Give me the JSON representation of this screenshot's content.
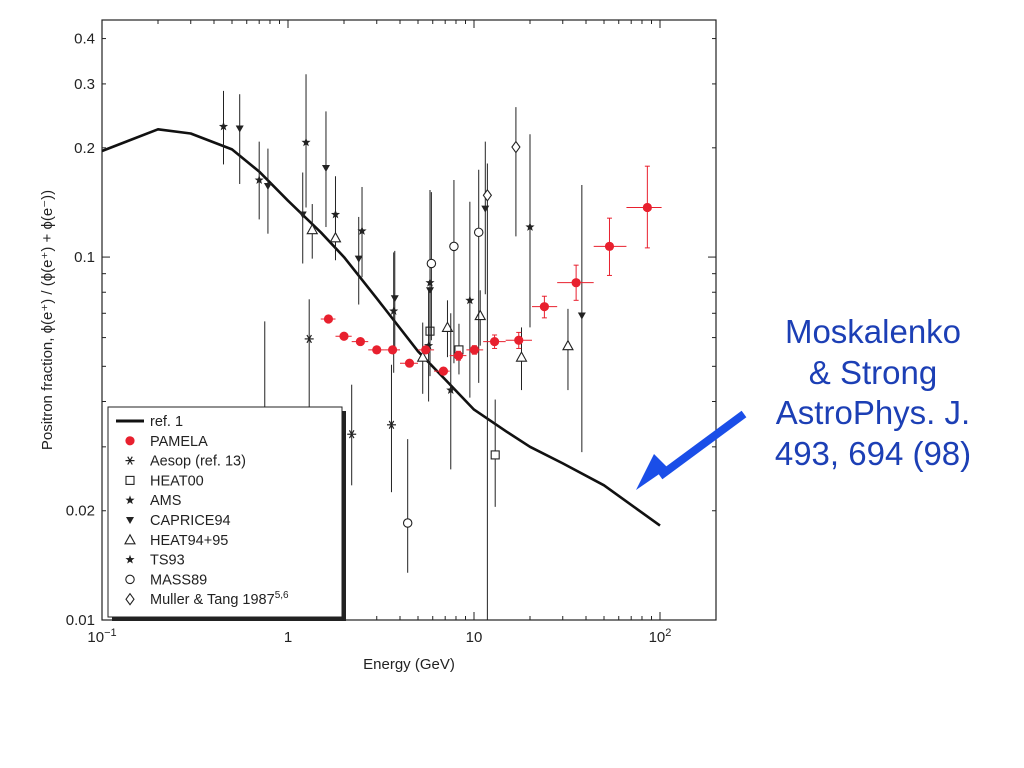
{
  "chart_data": {
    "type": "scatter",
    "title": "",
    "xlabel": "Energy (GeV)",
    "ylabel": "Positron fraction, ϕ(e⁺) / (ϕ(e⁺) + ϕ(e⁻))",
    "xscale": "log",
    "yscale": "log",
    "xlim": [
      0.1,
      200
    ],
    "ylim": [
      0.01,
      0.45
    ],
    "x_ticks": [
      {
        "value": 0.1,
        "label": "10",
        "sup": "−1"
      },
      {
        "value": 1,
        "label": "1",
        "sup": ""
      },
      {
        "value": 10,
        "label": "10",
        "sup": ""
      },
      {
        "value": 100,
        "label": "10",
        "sup": "2"
      }
    ],
    "y_ticks": [
      {
        "value": 0.01,
        "label": "0.01"
      },
      {
        "value": 0.02,
        "label": "0.02"
      },
      {
        "value": 0.1,
        "label": "0.1"
      },
      {
        "value": 0.2,
        "label": "0.2"
      },
      {
        "value": 0.3,
        "label": "0.3"
      },
      {
        "value": 0.4,
        "label": "0.4"
      }
    ],
    "legend": {
      "position": "bottom-left",
      "entries": [
        {
          "label": "ref. 1",
          "sup": "",
          "marker": "line"
        },
        {
          "label": "PAMELA",
          "sup": "",
          "marker": "red-dot"
        },
        {
          "label": "Aesop (ref. 13)",
          "sup": "",
          "marker": "asterisk"
        },
        {
          "label": "HEAT00",
          "sup": "",
          "marker": "open-square"
        },
        {
          "label": "AMS",
          "sup": "",
          "marker": "star"
        },
        {
          "label": "CAPRICE94",
          "sup": "",
          "marker": "filled-down-triangle"
        },
        {
          "label": "HEAT94+95",
          "sup": "",
          "marker": "open-triangle"
        },
        {
          "label": "TS93",
          "sup": "",
          "marker": "star"
        },
        {
          "label": "MASS89",
          "sup": "",
          "marker": "open-circle"
        },
        {
          "label": "Muller & Tang 1987",
          "sup": "5,6",
          "marker": "open-diamond"
        }
      ]
    },
    "colors": {
      "pamela": "#e8202e",
      "curve": "#111111",
      "data": "#222222",
      "note": "#1c3fb5",
      "arrow": "#1a4ee8"
    },
    "series": [
      {
        "name": "ref. 1",
        "marker": "line",
        "points": [
          [
            0.1,
            0.196
          ],
          [
            0.2,
            0.225
          ],
          [
            0.3,
            0.219
          ],
          [
            0.5,
            0.198
          ],
          [
            0.7,
            0.172
          ],
          [
            1.0,
            0.143
          ],
          [
            1.5,
            0.117
          ],
          [
            2.0,
            0.1
          ],
          [
            3.0,
            0.077
          ],
          [
            5.0,
            0.055
          ],
          [
            7.0,
            0.046
          ],
          [
            10.0,
            0.038
          ],
          [
            15.0,
            0.033
          ],
          [
            20.0,
            0.03
          ],
          [
            30.0,
            0.027
          ],
          [
            50.0,
            0.0235
          ],
          [
            100.0,
            0.0182
          ]
        ]
      },
      {
        "name": "PAMELA",
        "marker": "red-dot",
        "points": [
          {
            "x": 1.65,
            "y": 0.0675,
            "ylo": 0.0665,
            "yhi": 0.0685,
            "xlo": 1.5,
            "xhi": 1.8
          },
          {
            "x": 2.0,
            "y": 0.0605,
            "ylo": 0.0595,
            "yhi": 0.0615,
            "xlo": 1.8,
            "xhi": 2.2
          },
          {
            "x": 2.45,
            "y": 0.0585,
            "ylo": 0.0575,
            "yhi": 0.0595,
            "xlo": 2.2,
            "xhi": 2.7
          },
          {
            "x": 3.0,
            "y": 0.0555,
            "ylo": 0.0545,
            "yhi": 0.0565,
            "xlo": 2.7,
            "xhi": 3.3
          },
          {
            "x": 3.65,
            "y": 0.0555,
            "ylo": 0.0545,
            "yhi": 0.0565,
            "xlo": 3.3,
            "xhi": 4.0
          },
          {
            "x": 4.5,
            "y": 0.051,
            "ylo": 0.05,
            "yhi": 0.052,
            "xlo": 4.0,
            "xhi": 5.0
          },
          {
            "x": 5.5,
            "y": 0.0555,
            "ylo": 0.0545,
            "yhi": 0.0565,
            "xlo": 5.0,
            "xhi": 6.1
          },
          {
            "x": 6.85,
            "y": 0.0485,
            "ylo": 0.0475,
            "yhi": 0.0495,
            "xlo": 6.1,
            "xhi": 7.4
          },
          {
            "x": 8.25,
            "y": 0.0535,
            "ylo": 0.052,
            "yhi": 0.055,
            "xlo": 7.4,
            "xhi": 9.1
          },
          {
            "x": 10.05,
            "y": 0.0555,
            "ylo": 0.054,
            "yhi": 0.057,
            "xlo": 9.1,
            "xhi": 11.2
          },
          {
            "x": 12.9,
            "y": 0.0585,
            "ylo": 0.056,
            "yhi": 0.061,
            "xlo": 11.2,
            "xhi": 14.8
          },
          {
            "x": 17.4,
            "y": 0.059,
            "ylo": 0.056,
            "yhi": 0.062,
            "xlo": 14.8,
            "xhi": 20.5
          },
          {
            "x": 23.9,
            "y": 0.073,
            "ylo": 0.068,
            "yhi": 0.078,
            "xlo": 20.5,
            "xhi": 28.0
          },
          {
            "x": 35.4,
            "y": 0.085,
            "ylo": 0.076,
            "yhi": 0.095,
            "xlo": 28.0,
            "xhi": 44.0
          },
          {
            "x": 53.5,
            "y": 0.107,
            "ylo": 0.089,
            "yhi": 0.128,
            "xlo": 44.0,
            "xhi": 66.0
          },
          {
            "x": 85.5,
            "y": 0.137,
            "ylo": 0.106,
            "yhi": 0.178,
            "xlo": 66.0,
            "xhi": 102.0
          }
        ]
      },
      {
        "name": "Aesop (ref. 13)",
        "marker": "asterisk",
        "points": [
          {
            "x": 0.75,
            "y": 0.0335,
            "ylo": 0.0215,
            "yhi": 0.0665
          },
          {
            "x": 1.3,
            "y": 0.0595,
            "ylo": 0.0355,
            "yhi": 0.0765
          },
          {
            "x": 2.2,
            "y": 0.0325,
            "ylo": 0.0235,
            "yhi": 0.0445
          },
          {
            "x": 3.6,
            "y": 0.0345,
            "ylo": 0.0225,
            "yhi": 0.0505
          }
        ]
      },
      {
        "name": "HEAT00",
        "marker": "open-square",
        "points": [
          {
            "x": 5.8,
            "y": 0.0625,
            "ylo": 0.0565,
            "yhi": 0.0695
          },
          {
            "x": 8.3,
            "y": 0.0555,
            "ylo": 0.0475,
            "yhi": 0.0655
          },
          {
            "x": 13.0,
            "y": 0.0285,
            "ylo": 0.0205,
            "yhi": 0.0405
          }
        ]
      },
      {
        "name": "AMS",
        "marker": "star",
        "points": [
          {
            "x": 0.45,
            "y": 0.229,
            "ylo": 0.18,
            "yhi": 0.287
          },
          {
            "x": 0.7,
            "y": 0.163,
            "ylo": 0.127,
            "yhi": 0.208
          },
          {
            "x": 1.25,
            "y": 0.207,
            "ylo": 0.137,
            "yhi": 0.319
          },
          {
            "x": 1.8,
            "y": 0.131,
            "ylo": 0.103,
            "yhi": 0.167
          },
          {
            "x": 2.5,
            "y": 0.118,
            "ylo": 0.088,
            "yhi": 0.156
          },
          {
            "x": 3.7,
            "y": 0.071,
            "ylo": 0.048,
            "yhi": 0.103
          },
          {
            "x": 5.8,
            "y": 0.085,
            "ylo": 0.047,
            "yhi": 0.153
          },
          {
            "x": 9.5,
            "y": 0.076,
            "ylo": 0.041,
            "yhi": 0.142
          },
          {
            "x": 20.0,
            "y": 0.121,
            "ylo": 0.064,
            "yhi": 0.218
          }
        ]
      },
      {
        "name": "CAPRICE94",
        "marker": "filled-down-triangle",
        "points": [
          {
            "x": 0.55,
            "y": 0.226,
            "ylo": 0.159,
            "yhi": 0.281
          },
          {
            "x": 0.78,
            "y": 0.157,
            "ylo": 0.116,
            "yhi": 0.199
          },
          {
            "x": 1.2,
            "y": 0.131,
            "ylo": 0.096,
            "yhi": 0.171
          },
          {
            "x": 1.6,
            "y": 0.176,
            "ylo": 0.121,
            "yhi": 0.252
          },
          {
            "x": 2.4,
            "y": 0.099,
            "ylo": 0.074,
            "yhi": 0.129
          },
          {
            "x": 3.75,
            "y": 0.077,
            "ylo": 0.056,
            "yhi": 0.104
          },
          {
            "x": 5.8,
            "y": 0.081,
            "ylo": 0.049,
            "yhi": 0.123
          },
          {
            "x": 11.5,
            "y": 0.136,
            "ylo": 0.079,
            "yhi": 0.208
          },
          {
            "x": 38.0,
            "y": 0.069,
            "ylo": 0.029,
            "yhi": 0.158
          }
        ]
      },
      {
        "name": "HEAT94+95",
        "marker": "open-triangle",
        "points": [
          {
            "x": 1.35,
            "y": 0.119,
            "ylo": 0.099,
            "yhi": 0.14
          },
          {
            "x": 1.8,
            "y": 0.113,
            "ylo": 0.098,
            "yhi": 0.129
          },
          {
            "x": 5.3,
            "y": 0.053,
            "ylo": 0.042,
            "yhi": 0.066
          },
          {
            "x": 7.2,
            "y": 0.064,
            "ylo": 0.053,
            "yhi": 0.076
          },
          {
            "x": 10.8,
            "y": 0.069,
            "ylo": 0.057,
            "yhi": 0.081
          },
          {
            "x": 18.0,
            "y": 0.053,
            "ylo": 0.043,
            "yhi": 0.064
          },
          {
            "x": 32.0,
            "y": 0.057,
            "ylo": 0.043,
            "yhi": 0.072
          }
        ]
      },
      {
        "name": "TS93",
        "marker": "star",
        "points": [
          {
            "x": 5.7,
            "y": 0.057,
            "ylo": 0.04,
            "yhi": 0.081
          },
          {
            "x": 7.5,
            "y": 0.043,
            "ylo": 0.026,
            "yhi": 0.07
          }
        ]
      },
      {
        "name": "MASS89",
        "marker": "open-circle",
        "points": [
          {
            "x": 4.4,
            "y": 0.0185,
            "ylo": 0.0135,
            "yhi": 0.0315
          },
          {
            "x": 5.9,
            "y": 0.096,
            "ylo": 0.059,
            "yhi": 0.151
          },
          {
            "x": 7.8,
            "y": 0.107,
            "ylo": 0.051,
            "yhi": 0.163
          },
          {
            "x": 10.6,
            "y": 0.117,
            "ylo": 0.045,
            "yhi": 0.174
          }
        ]
      },
      {
        "name": "Muller & Tang 1987",
        "marker": "open-diamond",
        "points": [
          {
            "x": 11.8,
            "y": 0.148,
            "ylo": 0.01,
            "yhi": 0.181
          },
          {
            "x": 16.8,
            "y": 0.201,
            "ylo": 0.114,
            "yhi": 0.259
          }
        ]
      }
    ]
  },
  "annotation": {
    "lines": [
      "Moskalenko",
      "& Strong",
      "AstroPhys. J.",
      "493, 694 (98)"
    ]
  }
}
